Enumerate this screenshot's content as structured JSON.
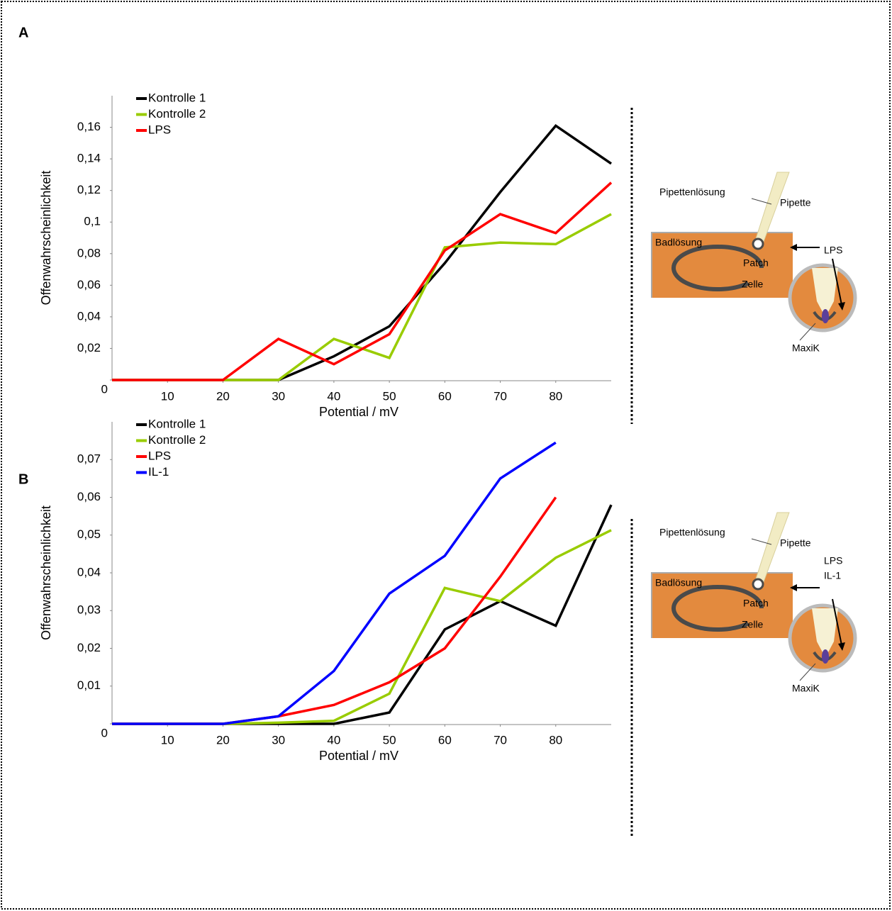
{
  "panel_labels": [
    "A",
    "B"
  ],
  "chart_data": [
    {
      "type": "line",
      "x_label": "Potential / mV",
      "y_label": "Offenwahrscheinlichkeit",
      "x": [
        0,
        10,
        20,
        30,
        40,
        50,
        60,
        70,
        80,
        90
      ],
      "xlim": [
        0,
        90
      ],
      "xticks": [
        10,
        20,
        30,
        40,
        50,
        60,
        70,
        80
      ],
      "ylim": [
        0,
        0.18
      ],
      "yticks": [
        0,
        {
          "value": 0.02,
          "label": "0,02"
        },
        {
          "value": 0.04,
          "label": "0,04"
        },
        {
          "value": 0.06,
          "label": "0,06"
        },
        {
          "value": 0.08,
          "label": "0,08"
        },
        {
          "value": 0.1,
          "label": "0,1"
        },
        {
          "value": 0.12,
          "label": "0,12"
        },
        {
          "value": 0.14,
          "label": "0,14"
        },
        {
          "value": 0.16,
          "label": "0,16"
        }
      ],
      "grid": false,
      "legend": "upper left",
      "series": [
        {
          "name": "Kontrolle 1",
          "color": "#000000",
          "values": [
            0,
            0,
            0,
            0,
            0.015,
            0.034,
            0.074,
            0.119,
            0.161,
            0.137
          ]
        },
        {
          "name": "Kontrolle 2",
          "color": "#99cc00",
          "values": [
            0,
            0,
            0,
            0,
            0.026,
            0.014,
            0.084,
            0.087,
            0.086,
            0.105
          ]
        },
        {
          "name": "LPS",
          "color": "#ff0000",
          "values": [
            0,
            0,
            0,
            0.026,
            0.01,
            0.029,
            0.082,
            0.105,
            0.093,
            0.125
          ]
        }
      ]
    },
    {
      "type": "line",
      "x_label": "Potential / mV",
      "y_label": "Offenwahrscheinlichkeit",
      "x": [
        0,
        10,
        20,
        30,
        40,
        50,
        60,
        70,
        80,
        90
      ],
      "xlim": [
        0,
        90
      ],
      "xticks": [
        10,
        20,
        30,
        40,
        50,
        60,
        70,
        80
      ],
      "ylim": [
        0,
        0.08
      ],
      "yticks": [
        0,
        {
          "value": 0.01,
          "label": "0,01"
        },
        {
          "value": 0.02,
          "label": "0,02"
        },
        {
          "value": 0.03,
          "label": "0,03"
        },
        {
          "value": 0.04,
          "label": "0,04"
        },
        {
          "value": 0.05,
          "label": "0,05"
        },
        {
          "value": 0.06,
          "label": "0,06"
        },
        {
          "value": 0.07,
          "label": "0,07"
        }
      ],
      "grid": false,
      "legend": "upper left",
      "series": [
        {
          "name": "Kontrolle 1",
          "color": "#000000",
          "values": [
            0,
            0,
            0,
            0,
            0,
            0.003,
            0.025,
            0.0325,
            0.026,
            0.058
          ]
        },
        {
          "name": "Kontrolle 2",
          "color": "#99cc00",
          "values": [
            0,
            0,
            0,
            0.0003,
            0.0008,
            0.008,
            0.036,
            0.0325,
            0.044,
            0.0513
          ]
        },
        {
          "name": "LPS",
          "color": "#ff0000",
          "values": [
            0,
            0,
            0,
            0.002,
            0.005,
            0.011,
            0.02,
            0.039,
            0.06,
            null
          ]
        },
        {
          "name": "IL-1",
          "color": "#0000ff",
          "values": [
            0,
            0,
            0,
            0.002,
            0.014,
            0.0345,
            0.0445,
            0.065,
            0.0745,
            null
          ]
        }
      ]
    }
  ],
  "diagrams": [
    {
      "pipette_solution": "Pipettenlösung",
      "pipette": "Pipette",
      "bath": "Badlösung",
      "patch": "Patch",
      "cell": "Zelle",
      "channel": "MaxiK",
      "stimuli": [
        "LPS"
      ]
    },
    {
      "pipette_solution": "Pipettenlösung",
      "pipette": "Pipette",
      "bath": "Badlösung",
      "patch": "Patch",
      "cell": "Zelle",
      "channel": "MaxiK",
      "stimuli": [
        "LPS",
        "IL-1"
      ]
    }
  ]
}
